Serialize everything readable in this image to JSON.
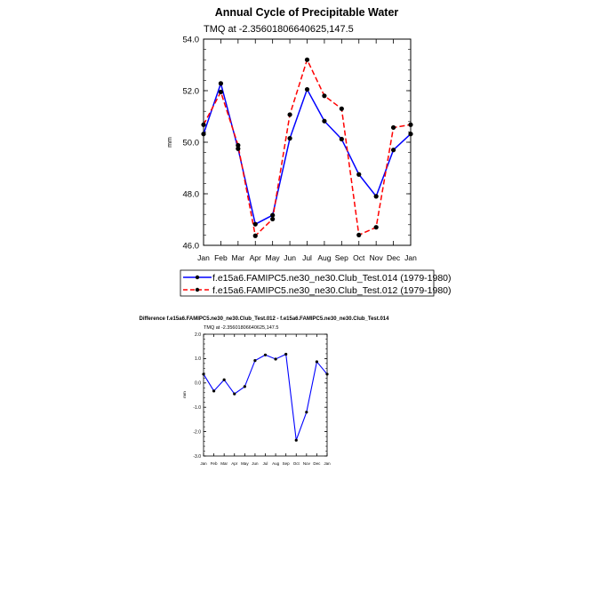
{
  "colors": {
    "series1": "#0000ff",
    "series2": "#ff0000",
    "marker": "#000000",
    "axis": "#000000"
  },
  "chart_data": [
    {
      "type": "line",
      "title": "Annual Cycle of Precipitable Water",
      "subtitle": "TMQ at -2.35601806640625,147.5",
      "xlabel": "",
      "ylabel": "mm",
      "categories": [
        "Jan",
        "Feb",
        "Mar",
        "Apr",
        "May",
        "Jun",
        "Jul",
        "Aug",
        "Sep",
        "Oct",
        "Nov",
        "Dec",
        "Jan"
      ],
      "ylim": [
        46.0,
        54.0
      ],
      "yticks": [
        46.0,
        48.0,
        50.0,
        52.0,
        54.0
      ],
      "ytick_labels": [
        "46.0",
        "48.0",
        "50.0",
        "52.0",
        "54.0"
      ],
      "series": [
        {
          "name": "f.e15a6.FAMIPC5.ne30_ne30.Club_Test.014 (1979-1980)",
          "style": "solid",
          "color": "#0000ff",
          "values": [
            50.32,
            52.28,
            49.75,
            46.82,
            47.17,
            50.15,
            52.05,
            50.82,
            50.12,
            48.75,
            47.9,
            49.7,
            50.32
          ]
        },
        {
          "name": "f.e15a6.FAMIPC5.ne30_ne30.Club_Test.012 (1979-1980)",
          "style": "dashed",
          "color": "#ff0000",
          "values": [
            50.68,
            51.95,
            49.88,
            46.37,
            47.02,
            51.07,
            53.2,
            51.8,
            51.3,
            46.4,
            46.7,
            50.57,
            50.68
          ]
        }
      ],
      "legend": "bottom"
    },
    {
      "type": "line",
      "title": "Difference f.e15a6.FAMIPC5.ne30_ne30.Club_Test.012 - f.e15a6.FAMIPC5.ne30_ne30.Club_Test.014",
      "subtitle": "TMQ at -2.35601806640625,147.5",
      "xlabel": "",
      "ylabel": "mm",
      "categories": [
        "Jan",
        "Feb",
        "Mar",
        "Apr",
        "May",
        "Jun",
        "Jul",
        "Aug",
        "Sep",
        "Oct",
        "Nov",
        "Dec",
        "Jan"
      ],
      "ylim": [
        -3.0,
        2.0
      ],
      "yticks": [
        -3.0,
        -2.0,
        -1.0,
        0.0,
        1.0,
        2.0
      ],
      "ytick_labels": [
        "-3.0",
        "-2.0",
        "-1.0",
        "0.0",
        "1.0",
        "2.0"
      ],
      "series": [
        {
          "name": "Difference",
          "style": "solid",
          "color": "#0000ff",
          "values": [
            0.36,
            -0.33,
            0.13,
            -0.45,
            -0.15,
            0.92,
            1.15,
            0.98,
            1.18,
            -2.35,
            -1.2,
            0.87,
            0.36
          ]
        }
      ],
      "legend": "none"
    }
  ]
}
